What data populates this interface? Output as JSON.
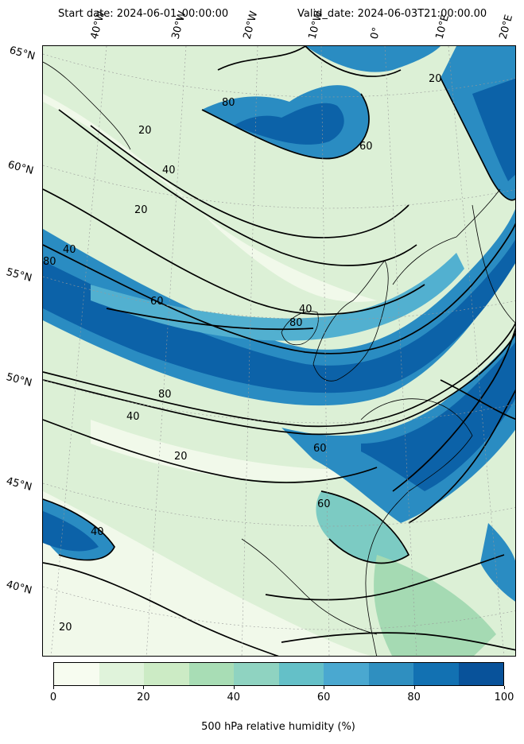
{
  "header": {
    "start_date": "Start date: 2024-06-01_00:00:00",
    "valid_date": "Valid_date: 2024-06-03T21:00:00.00"
  },
  "latitude_labels": [
    "65°N",
    "60°N",
    "55°N",
    "50°N",
    "45°N",
    "40°N"
  ],
  "longitude_labels": [
    "40°W",
    "30°W",
    "20°W",
    "10°W",
    "0°",
    "10°E",
    "20°E"
  ],
  "contour_labels": [
    "80",
    "60",
    "40",
    "20",
    "80",
    "40",
    "20",
    "60",
    "80",
    "40",
    "20",
    "60",
    "40",
    "80",
    "20",
    "60",
    "40",
    "20"
  ],
  "colorbar": {
    "title": "500 hPa relative humidity (%)",
    "ticks": [
      "0",
      "20",
      "40",
      "60",
      "80",
      "100"
    ],
    "colors": [
      "#f7fcf0",
      "#e0f3db",
      "#ccebc5",
      "#a8ddb5",
      "#8fd3c1",
      "#64c0c8",
      "#4aa8d0",
      "#2f8fc0",
      "#1271b2",
      "#08529a"
    ]
  },
  "map": {
    "fill_colors": {
      "very_dry": "#f1f9ea",
      "dry": "#dcf0d6",
      "light": "#c6e8c0",
      "mid": "#a5dab3",
      "teal": "#7ccbc3",
      "blue_light": "#52b0d0",
      "blue": "#2a8cc2",
      "blue_dark": "#0c62a8"
    }
  }
}
